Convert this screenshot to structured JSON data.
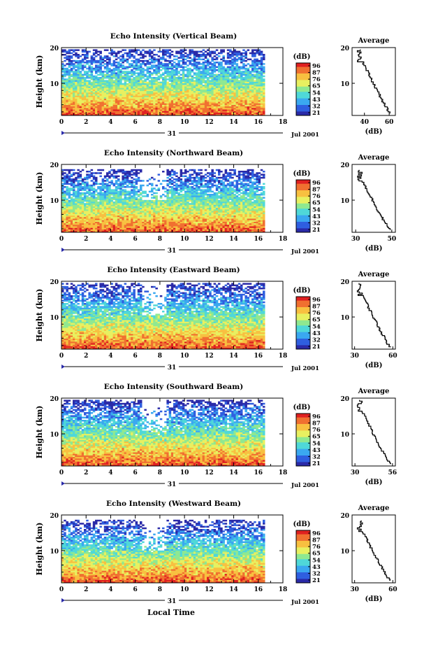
{
  "figure": {
    "xlabel": "Local Time",
    "ylabel": "Height (km)",
    "day_label": "31",
    "date_label": "Jul 2001",
    "colorbar_unit": "(dB)",
    "avg_title": "Average",
    "avg_xlabel": "(dB)"
  },
  "colors": {
    "scale": [
      "#2a2aa8",
      "#2f5fe0",
      "#3aa8f0",
      "#4fd8d8",
      "#8fe890",
      "#e8f060",
      "#f8c040",
      "#f07030",
      "#e02020"
    ]
  },
  "chart_data": [
    {
      "type": "heatmap",
      "title": "Echo Intensity (Vertical Beam)",
      "x_ticks": [
        0,
        2,
        4,
        6,
        8,
        10,
        12,
        14,
        16,
        18
      ],
      "y_ticks": [
        10,
        20
      ],
      "xlim": [
        0,
        18
      ],
      "ylim": [
        1,
        20
      ],
      "colorbar_ticks": [
        96,
        87,
        76,
        65,
        54,
        43,
        32,
        21
      ],
      "data_end_hour": 16.5,
      "top_km": 19.5,
      "avg_profile": {
        "xticks": [
          40,
          60
        ],
        "xlim": [
          30,
          65
        ]
      }
    },
    {
      "type": "heatmap",
      "title": "Echo Intensity (Northward Beam)",
      "x_ticks": [
        0,
        2,
        4,
        6,
        8,
        10,
        12,
        14,
        16,
        18
      ],
      "y_ticks": [
        10,
        20
      ],
      "xlim": [
        0,
        18
      ],
      "ylim": [
        1,
        20
      ],
      "colorbar_ticks": [
        96,
        87,
        76,
        65,
        54,
        43,
        32,
        21
      ],
      "data_end_hour": 16.5,
      "top_km": 18.5,
      "avg_profile": {
        "xticks": [
          30,
          50
        ],
        "xlim": [
          28,
          52
        ]
      }
    },
    {
      "type": "heatmap",
      "title": "Echo Intensity (Eastward Beam)",
      "x_ticks": [
        0,
        2,
        4,
        6,
        8,
        10,
        12,
        14,
        16,
        18
      ],
      "y_ticks": [
        10,
        20
      ],
      "xlim": [
        0,
        18
      ],
      "ylim": [
        1,
        20
      ],
      "colorbar_ticks": [
        96,
        87,
        76,
        65,
        54,
        43,
        32,
        21
      ],
      "data_end_hour": 16.5,
      "top_km": 19.5,
      "avg_profile": {
        "xticks": [
          30,
          60
        ],
        "xlim": [
          28,
          62
        ]
      }
    },
    {
      "type": "heatmap",
      "title": "Echo Intensity (Southward Beam)",
      "x_ticks": [
        0,
        2,
        4,
        6,
        8,
        10,
        12,
        14,
        16,
        18
      ],
      "y_ticks": [
        10,
        20
      ],
      "xlim": [
        0,
        18
      ],
      "ylim": [
        1,
        20
      ],
      "colorbar_ticks": [
        96,
        87,
        76,
        65,
        54,
        43,
        32,
        21
      ],
      "data_end_hour": 16.5,
      "top_km": 19.5,
      "avg_profile": {
        "xticks": [
          30,
          56
        ],
        "xlim": [
          28,
          58
        ]
      }
    },
    {
      "type": "heatmap",
      "title": "Echo Intensity (Westward Beam)",
      "x_ticks": [
        0,
        2,
        4,
        6,
        8,
        10,
        12,
        14,
        16,
        18
      ],
      "y_ticks": [
        10,
        20
      ],
      "xlim": [
        0,
        18
      ],
      "ylim": [
        1,
        20
      ],
      "colorbar_ticks": [
        96,
        87,
        76,
        65,
        54,
        43,
        32,
        21
      ],
      "data_end_hour": 16.5,
      "top_km": 18.5,
      "avg_profile": {
        "xticks": [
          30,
          60
        ],
        "xlim": [
          28,
          62
        ]
      }
    }
  ]
}
